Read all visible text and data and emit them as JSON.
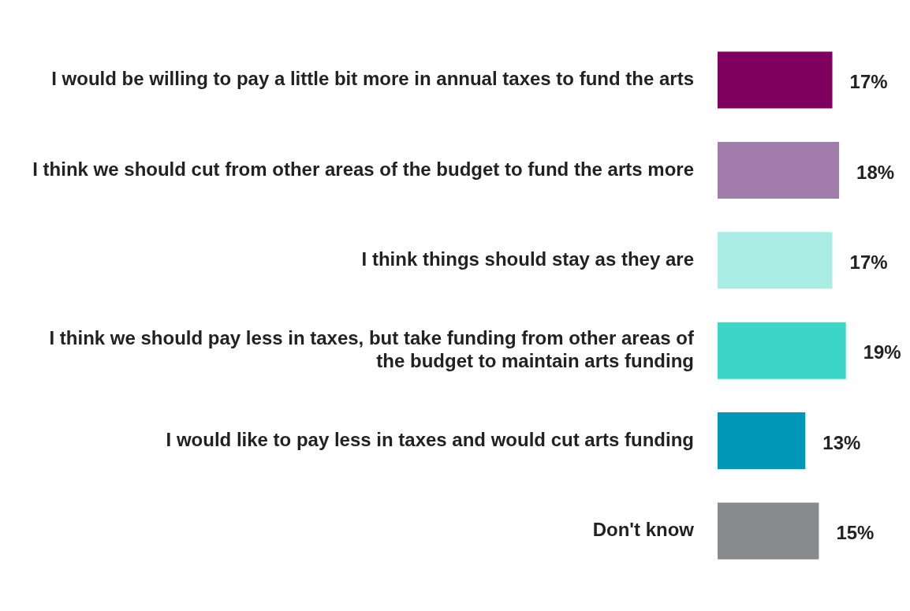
{
  "chart_data": {
    "type": "bar",
    "orientation": "horizontal",
    "categories": [
      "I would be willing to pay a little bit more in annual taxes to fund the arts",
      "I think we should cut from other areas of the budget to fund the arts more",
      "I think things should stay as they are",
      "I think we should pay less in taxes, but take funding from other areas of the budget to maintain arts funding",
      "I would like to pay less in taxes and would cut arts funding",
      "Don't know"
    ],
    "values": [
      17,
      18,
      17,
      19,
      13,
      15
    ],
    "colors": [
      "#7f005f",
      "#a27caa",
      "#aaede4",
      "#3bd6c7",
      "#0096b7",
      "#888b8e"
    ],
    "value_labels": [
      "17%",
      "18%",
      "17%",
      "19%",
      "13%",
      "15%"
    ],
    "grid": false,
    "legend": false
  }
}
